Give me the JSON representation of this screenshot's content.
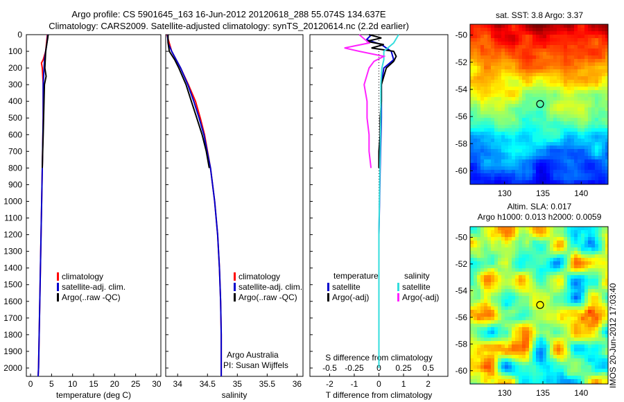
{
  "header": {
    "line1": "Argo profile: CS 5901645_163 16-Jun-2012 20120618_288 55.074S 134.637E",
    "line2": "Climatology: CARS2009. Satellite-adjusted climatology: synTS_20120614.nc (2.2d earlier)"
  },
  "imos_stamp": "IMOS 20-Jun-2012 17:03:40",
  "colors": {
    "climatology": "#ff0000",
    "satellite": "#0000cc",
    "argo": "#000000",
    "sal_satellite": "#33dddd",
    "sal_argo": "#ff22ff"
  },
  "chart_data": [
    {
      "type": "line",
      "panel": "temperature",
      "xlabel": "temperature (deg C)",
      "xlim": [
        -1,
        31
      ],
      "xticks": [
        "0",
        "5",
        "10",
        "15",
        "20",
        "25",
        "30"
      ],
      "ylim": [
        2050,
        0
      ],
      "yticks": [
        "0",
        "100",
        "200",
        "300",
        "400",
        "500",
        "600",
        "700",
        "800",
        "900",
        "1000",
        "1100",
        "1200",
        "1300",
        "1400",
        "1500",
        "1600",
        "1700",
        "1800",
        "1900",
        "2000"
      ],
      "legend": [
        "climatology",
        "satellite-adj. clim.",
        "Argo(..raw -QC)"
      ],
      "series": [
        {
          "name": "climatology",
          "color": "#ff0000",
          "depth": [
            0,
            50,
            100,
            150,
            170,
            200,
            300,
            500,
            800,
            1200,
            1600,
            2000,
            2050
          ],
          "values": [
            4.0,
            3.8,
            3.6,
            3.0,
            2.6,
            2.8,
            3.0,
            3.0,
            2.8,
            2.5,
            2.2,
            1.9,
            1.8
          ]
        },
        {
          "name": "satellite-adj. clim.",
          "color": "#0000cc",
          "depth": [
            0,
            50,
            100,
            150,
            200,
            300,
            500,
            800,
            1200,
            1600,
            2000,
            2050
          ],
          "values": [
            4.1,
            3.9,
            3.6,
            3.3,
            3.2,
            3.0,
            3.0,
            2.8,
            2.5,
            2.2,
            1.9,
            1.8
          ]
        },
        {
          "name": "Argo(..raw -QC)",
          "color": "#000000",
          "depth": [
            0,
            20,
            50,
            100,
            150,
            200,
            250,
            300,
            400,
            500,
            600,
            700,
            800
          ],
          "values": [
            4.2,
            4.1,
            3.9,
            3.6,
            3.5,
            3.4,
            3.7,
            3.3,
            3.2,
            3.1,
            3.0,
            2.9,
            2.8
          ]
        }
      ]
    },
    {
      "type": "line",
      "panel": "salinity",
      "xlabel": "salinity",
      "xlim": [
        33.8,
        36.1
      ],
      "xticks": [
        "34",
        "34.5",
        "35",
        "35.5",
        "36"
      ],
      "ylim": [
        2050,
        0
      ],
      "legend": [
        "climatology",
        "satellite-adj. clim.",
        "Argo(..raw -QC)"
      ],
      "annotation": [
        "Argo Australia",
        "PI: Susan Wijffels"
      ],
      "series": [
        {
          "name": "climatology",
          "color": "#ff0000",
          "depth": [
            0,
            100,
            200,
            300,
            400,
            500,
            600,
            800,
            1000,
            1200,
            1400,
            1600,
            1800,
            2000,
            2050
          ],
          "values": [
            33.82,
            33.9,
            34.05,
            34.18,
            34.3,
            34.38,
            34.45,
            34.55,
            34.62,
            34.67,
            34.7,
            34.72,
            34.73,
            34.73,
            34.73
          ]
        },
        {
          "name": "satellite-adj. clim.",
          "color": "#0000cc",
          "depth": [
            0,
            50,
            100,
            200,
            300,
            400,
            500,
            600,
            800,
            1000,
            1200,
            1400,
            1600,
            1800,
            2000,
            2050
          ],
          "values": [
            33.83,
            33.84,
            33.9,
            34.05,
            34.17,
            34.27,
            34.36,
            34.44,
            34.55,
            34.62,
            34.67,
            34.7,
            34.72,
            34.73,
            34.73,
            34.73
          ]
        },
        {
          "name": "Argo(..raw -QC)",
          "color": "#000000",
          "depth": [
            0,
            50,
            100,
            150,
            200,
            300,
            400,
            500,
            600,
            700,
            800
          ],
          "values": [
            33.84,
            33.84,
            33.86,
            33.95,
            34.02,
            34.14,
            34.23,
            34.32,
            34.41,
            34.48,
            34.53
          ]
        }
      ]
    },
    {
      "type": "line",
      "panel": "difference",
      "xlabel": "T difference from climatology",
      "xlabel_top": "S difference from climatology",
      "xlim": [
        -2.8,
        2.8
      ],
      "xticks_T": [
        "-2",
        "-1",
        "0",
        "1",
        "2"
      ],
      "xticks_S": [
        "-0.5",
        "-0.25",
        "0",
        "0.25",
        "0.5"
      ],
      "ylim": [
        2050,
        0
      ],
      "legend_temperature": {
        "title": "temperature",
        "items": [
          "satellite",
          "Argo(-adj)"
        ]
      },
      "legend_salinity": {
        "title": "salinity",
        "items": [
          "satellite",
          "Argo(-adj)"
        ]
      },
      "series": [
        {
          "name": "satellite",
          "group": "temperature",
          "color": "#0000cc",
          "depth": [
            0,
            30,
            60,
            100,
            150,
            200,
            300,
            500,
            800,
            1200,
            1600,
            2000
          ],
          "values": [
            -0.3,
            -0.5,
            0.1,
            0.5,
            0.6,
            0.2,
            0.1,
            0.1,
            0.05,
            0.0,
            0.0,
            0.0
          ]
        },
        {
          "name": "Argo(-adj)",
          "group": "temperature",
          "color": "#000000",
          "depth": [
            0,
            20,
            40,
            60,
            80,
            100,
            130,
            160,
            200,
            250,
            300,
            400,
            500,
            600,
            700,
            800
          ],
          "values": [
            -0.4,
            0.1,
            -0.5,
            0.2,
            -0.3,
            0.6,
            0.7,
            0.6,
            0.3,
            0.2,
            0.1,
            0.1,
            0.05,
            0.05,
            0.0,
            0.0
          ]
        },
        {
          "name": "satellite",
          "group": "salinity",
          "color": "#33dddd",
          "depth": [
            0,
            50,
            100,
            150,
            200,
            300,
            500,
            800,
            1200,
            1600,
            2000
          ],
          "values": [
            0.2,
            0.15,
            0.05,
            0.05,
            0.03,
            0.02,
            0.02,
            0.01,
            0.0,
            0.0,
            0.0
          ]
        },
        {
          "name": "Argo(-adj)",
          "group": "salinity",
          "color": "#ff22ff",
          "depth": [
            0,
            50,
            80,
            100,
            130,
            160,
            200,
            300,
            400,
            500,
            600,
            700,
            800
          ],
          "values": [
            -0.2,
            -0.1,
            -0.35,
            -0.2,
            0.05,
            -0.05,
            -0.1,
            -0.15,
            -0.12,
            -0.12,
            -0.1,
            -0.1,
            -0.08
          ]
        }
      ]
    },
    {
      "type": "heatmap",
      "panel": "sst_map",
      "title": "sat. SST: 3.8 Argo: 3.37",
      "xticks": [
        "130",
        "135",
        "140"
      ],
      "yticks": [
        "-50",
        "-52",
        "-54",
        "-56",
        "-58",
        "-60"
      ],
      "xlim": [
        125.5,
        143.5
      ],
      "ylim": [
        -61,
        -49.2
      ],
      "marker": {
        "lon": 134.637,
        "lat": -55.074
      }
    },
    {
      "type": "heatmap",
      "panel": "sla_map",
      "title": "Altim. SLA: 0.017",
      "subtitle": "Argo h1000: 0.013 h2000: 0.0059",
      "xticks": [
        "130",
        "135",
        "140"
      ],
      "yticks": [
        "-50",
        "-52",
        "-54",
        "-56",
        "-58",
        "-60"
      ],
      "xlim": [
        125.5,
        143.5
      ],
      "ylim": [
        -61,
        -49.2
      ],
      "marker": {
        "lon": 134.637,
        "lat": -55.074
      }
    }
  ]
}
